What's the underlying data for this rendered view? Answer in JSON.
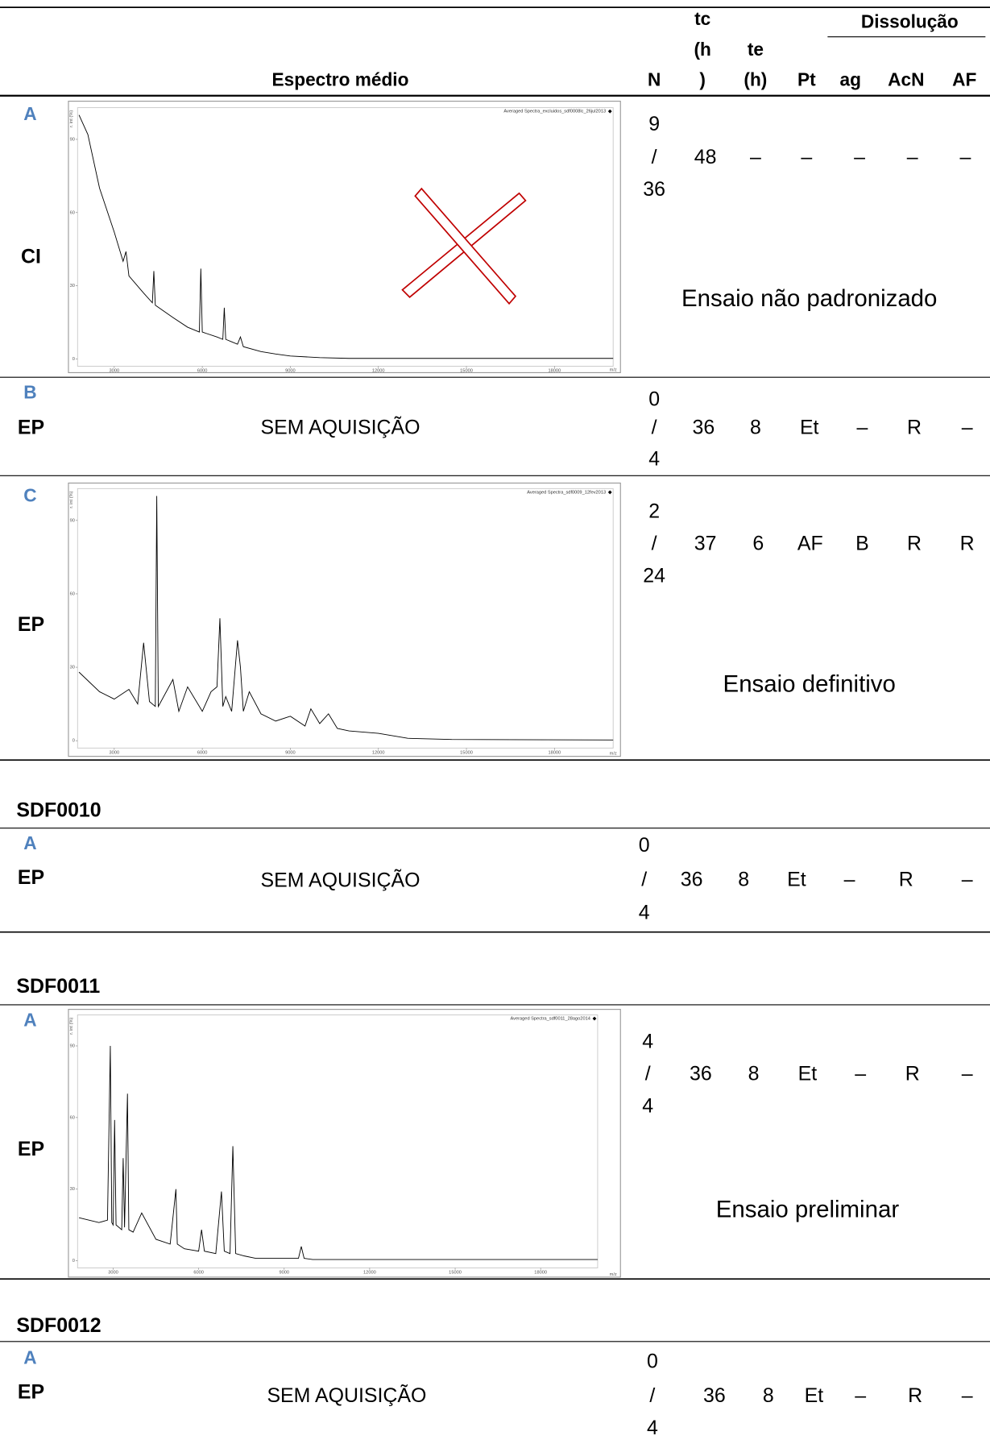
{
  "header": {
    "spectrum": "Espectro médio",
    "n": "N",
    "tc": [
      "tc",
      "(h",
      ")"
    ],
    "te": [
      "te",
      "(h)"
    ],
    "pt": "Pt",
    "dissolution": "Dissolução",
    "ag": "ag",
    "acn": "AcN",
    "af": "AF"
  },
  "sections": [
    {
      "rows": [
        {
          "id": "A",
          "kind": "CI",
          "n": [
            "9",
            "/",
            "36"
          ],
          "tc": "48",
          "te": "–",
          "pt": "–",
          "ag": "–",
          "acn": "–",
          "af": "–",
          "note": "Ensaio não padronizado",
          "spectrum": {
            "legend": "Averaged Spectra_excluidos_sdf0008lc_26jul2013",
            "ylabel": "r. int (%)",
            "xlabel": "m/z",
            "xlim": [
              1750,
              20000
            ],
            "ylim": [
              -3,
              103
            ],
            "xticks": [
              3000,
              6000,
              9000,
              12000,
              15000,
              18000
            ],
            "yticks": [
              0,
              30,
              60,
              90
            ],
            "x": [
              1800,
              2100,
              2500,
              3000,
              3300,
              3400,
              3500,
              4000,
              4300,
              4350,
              4400,
              5000,
              5500,
              5900,
              5950,
              6000,
              6500,
              6700,
              6750,
              6800,
              7000,
              7200,
              7300,
              7400,
              8000,
              8500,
              9000,
              10000,
              11000,
              20000
            ],
            "values": [
              100,
              92,
              70,
              52,
              40,
              44,
              34,
              27,
              23,
              36,
              22,
              17,
              13,
              11,
              37,
              11,
              9,
              8,
              21,
              8,
              7,
              6,
              9,
              5,
              3,
              2,
              1.2,
              0.5,
              0.2,
              0.2
            ]
          }
        },
        {
          "id": "B",
          "kind": "EP",
          "acquisition": "SEM AQUISIÇÃO",
          "n": [
            "0",
            "/",
            "4"
          ],
          "tc": "36",
          "te": "8",
          "pt": "Et",
          "ag": "–",
          "acn": "R",
          "af": "–"
        },
        {
          "id": "C",
          "kind": "EP",
          "n": [
            "2",
            "/",
            "24"
          ],
          "tc": "37",
          "te": "6",
          "pt": "AF",
          "ag": "B",
          "acn": "R",
          "af": "R",
          "note": "Ensaio definitivo",
          "spectrum": {
            "legend": "Averaged Spectra_sdf0009_12fev2013",
            "ylabel": "r. int (%)",
            "xlabel": "m/z",
            "xlim": [
              1750,
              20000
            ],
            "ylim": [
              -3,
              103
            ],
            "xticks": [
              3000,
              6000,
              9000,
              12000,
              15000,
              18000
            ],
            "yticks": [
              0,
              30,
              60,
              90
            ],
            "x": [
              1800,
              2500,
              3000,
              3500,
              3800,
              4000,
              4200,
              4400,
              4450,
              4500,
              5000,
              5200,
              5500,
              6000,
              6300,
              6500,
              6600,
              6700,
              6800,
              7000,
              7200,
              7300,
              7400,
              7600,
              8000,
              8500,
              9000,
              9500,
              9700,
              10000,
              10300,
              10600,
              11000,
              12000,
              13000,
              14500,
              20000
            ],
            "values": [
              28,
              20,
              17,
              21,
              15,
              40,
              16,
              14,
              100,
              14,
              25,
              12,
              22,
              12,
              20,
              22,
              50,
              14,
              18,
              12,
              41,
              30,
              12,
              20,
              11,
              8,
              10,
              6,
              13,
              7,
              11,
              5,
              4,
              3,
              1,
              0.5,
              0.3
            ]
          }
        }
      ]
    },
    {
      "title": "SDF0010",
      "rows": [
        {
          "id": "A",
          "kind": "EP",
          "acquisition": "SEM AQUISIÇÃO",
          "n": [
            "0",
            "/",
            "4"
          ],
          "tc": "36",
          "te": "8",
          "pt": "Et",
          "ag": "–",
          "acn": "R",
          "af": "–"
        }
      ]
    },
    {
      "title": "SDF0011",
      "rows": [
        {
          "id": "A",
          "kind": "EP",
          "n": [
            "4",
            "/",
            "4"
          ],
          "tc": "36",
          "te": "8",
          "pt": "Et",
          "ag": "–",
          "acn": "R",
          "af": "–",
          "note": "Ensaio preliminar",
          "spectrum": {
            "legend": "Averaged Spectra_sdf0011_28ago2014",
            "ylabel": "r. int (%)",
            "xlabel": "m/z",
            "xlim": [
              1750,
              20000
            ],
            "ylim": [
              -3,
              103
            ],
            "xticks": [
              3000,
              6000,
              9000,
              12000,
              15000,
              18000
            ],
            "yticks": [
              0,
              30,
              60,
              90
            ],
            "x": [
              1800,
              2500,
              2800,
              2900,
              2950,
              3000,
              3050,
              3100,
              3300,
              3350,
              3400,
              3500,
              3550,
              3700,
              4000,
              4500,
              5000,
              5200,
              5250,
              5500,
              6000,
              6100,
              6200,
              6600,
              6800,
              6900,
              7100,
              7200,
              7300,
              7600,
              8000,
              9000,
              9500,
              9600,
              9700,
              10000,
              20000
            ],
            "values": [
              18,
              16,
              17,
              90,
              16,
              15,
              59,
              15,
              13,
              43,
              14,
              70,
              13,
              12,
              20,
              9,
              7,
              30,
              7,
              5,
              4,
              13,
              4,
              3,
              29,
              4,
              3,
              48,
              3,
              2,
              1,
              1,
              1,
              6,
              1,
              0.5,
              0.5
            ]
          }
        }
      ]
    },
    {
      "title": "SDF0012",
      "rows": [
        {
          "id": "A",
          "kind": "EP",
          "acquisition": "SEM AQUISIÇÃO",
          "n": [
            "0",
            "/",
            "4"
          ],
          "tc": "36",
          "te": "8",
          "pt": "Et",
          "ag": "–",
          "acn": "R",
          "af": "–"
        }
      ]
    }
  ]
}
